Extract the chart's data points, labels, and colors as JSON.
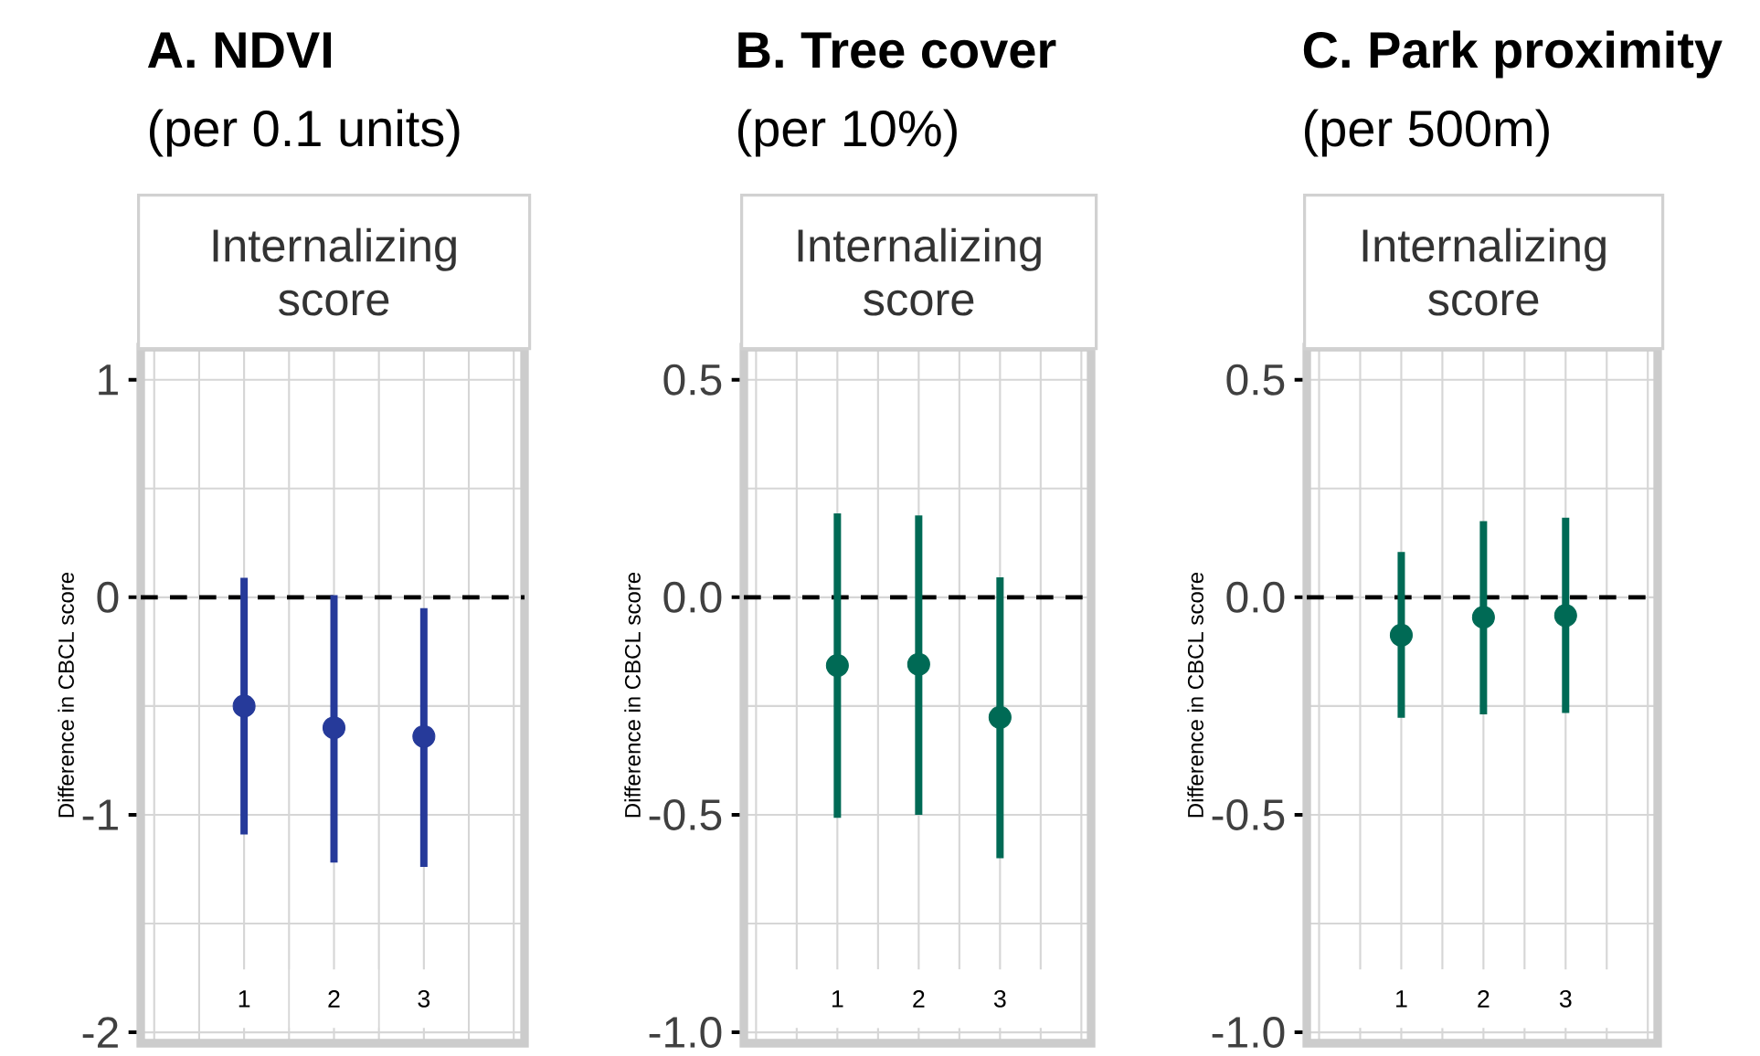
{
  "chart_data": [
    {
      "type": "scatter",
      "title": "**A. NDVI**",
      "subtitle": "(per 0.1 units)",
      "annotations": [
        "Internalizing score"
      ],
      "ylabel": "Difference in CBCL score",
      "categories": [
        "1",
        "2",
        "3"
      ],
      "series": [
        {
          "color": "#263a9a",
          "values": [
            -0.5,
            -0.6,
            -0.64
          ],
          "errors": [
            [
              -1.09,
              0.09
            ],
            [
              -1.22,
              0.01
            ],
            [
              -1.24,
              -0.05
            ]
          ]
        }
      ],
      "ylim": [
        -2.05,
        1.15
      ],
      "yticks": [
        -2,
        -1,
        0,
        1
      ],
      "grid": true,
      "marker": "circle",
      "ref_lines": [
        {
          "axis": "y",
          "value": 0,
          "color": "#000000",
          "line_style": "dashed"
        }
      ]
    },
    {
      "type": "scatter",
      "title": "**B. Tree cover**",
      "subtitle": "(per 10%)",
      "annotations": [
        "Internalizing score"
      ],
      "ylabel": "Difference in CBCL score",
      "categories": [
        "1",
        "2",
        "3"
      ],
      "series": [
        {
          "color": "#006a55",
          "values": [
            -0.157,
            -0.154,
            -0.276
          ],
          "errors": [
            [
              -0.507,
              0.193
            ],
            [
              -0.5,
              0.188
            ],
            [
              -0.6,
              0.046
            ]
          ]
        }
      ],
      "ylim": [
        -1.025,
        0.575
      ],
      "yticks": [
        {
          "value": -1,
          "label": "-1.0"
        },
        {
          "value": -0.5,
          "label": "-0.5"
        },
        {
          "value": 0,
          "label": "0.0"
        },
        {
          "value": 0.5,
          "label": "0.5"
        }
      ],
      "grid": true,
      "marker": "circle",
      "ref_lines": [
        {
          "axis": "y",
          "value": 0,
          "color": "#000000",
          "line_style": "dashed"
        }
      ]
    },
    {
      "type": "scatter",
      "title": "**C. Park proximity**",
      "subtitle": "(per 500m)",
      "annotations": [
        "Internalizing score"
      ],
      "ylabel": "Difference in CBCL score",
      "categories": [
        "1",
        "2",
        "3"
      ],
      "series": [
        {
          "color": "#006a55",
          "values": [
            -0.087,
            -0.046,
            -0.042
          ],
          "errors": [
            [
              -0.277,
              0.104
            ],
            [
              -0.269,
              0.175
            ],
            [
              -0.266,
              0.183
            ]
          ]
        }
      ],
      "ylim": [
        -1.025,
        0.575
      ],
      "yticks": [
        {
          "value": -1,
          "label": "-1.0"
        },
        {
          "value": -0.5,
          "label": "-0.5"
        },
        {
          "value": 0,
          "label": "0.0"
        },
        {
          "value": 0.5,
          "label": "0.5"
        }
      ],
      "grid": true,
      "marker": "circle",
      "ref_lines": [
        {
          "axis": "y",
          "value": 0,
          "color": "#000000",
          "line_style": "dashed"
        }
      ]
    }
  ]
}
